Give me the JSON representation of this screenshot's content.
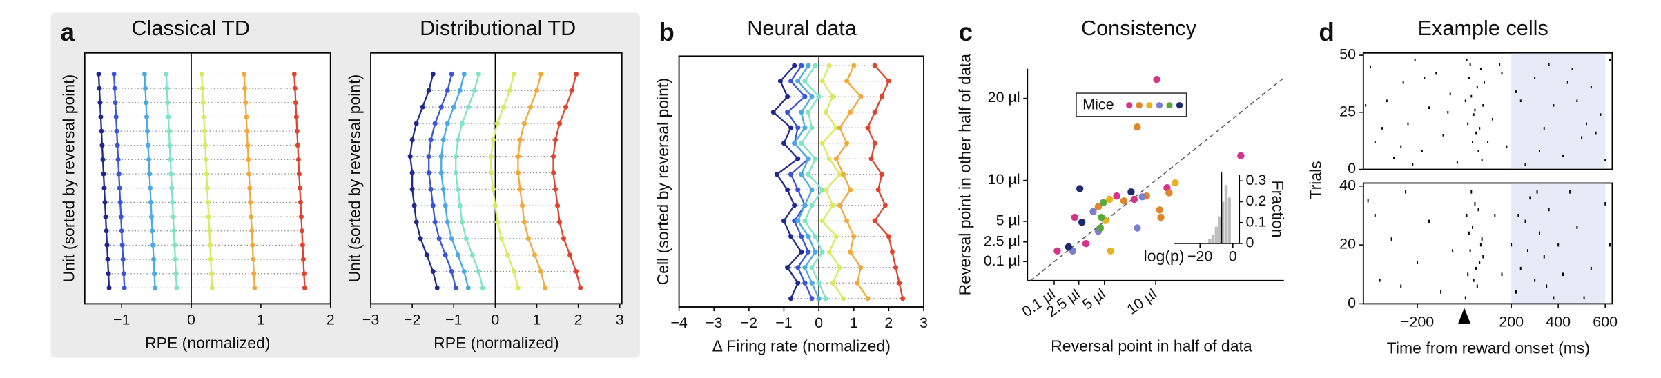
{
  "chart_data": [
    {
      "type": "dot_rows",
      "panel": "a",
      "title": "Classical TD",
      "x_label": "RPE (normalized)",
      "y_label": "Unit (sorted by reversal point)",
      "xlim": [
        -1.53,
        2
      ],
      "xticks": [
        {
          "value": -1,
          "label": "−1"
        },
        0,
        1,
        2
      ],
      "series": [
        {
          "color": "#1f2a8c",
          "values": [
            -1.33,
            -1.32,
            -1.31,
            -1.3,
            -1.29,
            -1.28,
            -1.27,
            -1.26,
            -1.25,
            -1.24,
            -1.23,
            -1.22,
            -1.21,
            -1.2,
            -1.19,
            -1.18
          ]
        },
        {
          "color": "#3a55d6",
          "values": [
            -1.11,
            -1.1,
            -1.09,
            -1.08,
            -1.07,
            -1.06,
            -1.05,
            -1.04,
            -1.03,
            -1.02,
            -1.01,
            -1.0,
            -0.99,
            -0.98,
            -0.97,
            -0.96
          ]
        },
        {
          "color": "#4aa9e6",
          "values": [
            -0.67,
            -0.66,
            -0.65,
            -0.64,
            -0.63,
            -0.62,
            -0.61,
            -0.6,
            -0.59,
            -0.58,
            -0.57,
            -0.56,
            -0.55,
            -0.54,
            -0.53,
            -0.52
          ]
        },
        {
          "color": "#7fe3c8",
          "values": [
            -0.36,
            -0.35,
            -0.34,
            -0.33,
            -0.32,
            -0.31,
            -0.3,
            -0.29,
            -0.28,
            -0.27,
            -0.26,
            -0.25,
            -0.24,
            -0.23,
            -0.22,
            -0.21
          ]
        },
        {
          "color": "#d9ea62",
          "values": [
            0.15,
            0.16,
            0.17,
            0.18,
            0.19,
            0.2,
            0.21,
            0.22,
            0.23,
            0.24,
            0.25,
            0.26,
            0.27,
            0.28,
            0.29,
            0.3
          ]
        },
        {
          "color": "#f2a93b",
          "values": [
            0.76,
            0.77,
            0.78,
            0.79,
            0.8,
            0.81,
            0.82,
            0.83,
            0.84,
            0.85,
            0.86,
            0.87,
            0.88,
            0.89,
            0.9,
            0.91
          ]
        },
        {
          "color": "#e0442c",
          "values": [
            1.48,
            1.49,
            1.5,
            1.51,
            1.52,
            1.53,
            1.54,
            1.55,
            1.56,
            1.57,
            1.58,
            1.59,
            1.6,
            1.61,
            1.62,
            1.63
          ]
        }
      ]
    },
    {
      "type": "dot_rows",
      "title": "Distributional TD",
      "x_label": "RPE (normalized)",
      "y_label": "Unit (sorted by reversal point)",
      "xlim": [
        -3,
        3.05
      ],
      "xticks": [
        {
          "value": -3,
          "label": "−3"
        },
        {
          "value": -2,
          "label": "−2"
        },
        {
          "value": -1,
          "label": "−1"
        },
        0,
        1,
        2,
        3
      ],
      "series": [
        {
          "color": "#1f2a8c",
          "values": [
            -1.5,
            -1.6,
            -1.75,
            -1.9,
            -2.0,
            -2.05,
            -2.0,
            -2.0,
            -1.95,
            -1.9,
            -1.8,
            -1.65,
            -1.5,
            -1.4
          ]
        },
        {
          "color": "#3a55d6",
          "values": [
            -1.05,
            -1.15,
            -1.3,
            -1.45,
            -1.55,
            -1.6,
            -1.6,
            -1.55,
            -1.5,
            -1.45,
            -1.35,
            -1.2,
            -1.05,
            -0.95
          ]
        },
        {
          "color": "#4aa9e6",
          "values": [
            -0.75,
            -0.85,
            -1.0,
            -1.15,
            -1.25,
            -1.3,
            -1.3,
            -1.25,
            -1.2,
            -1.15,
            -1.05,
            -0.9,
            -0.75,
            -0.65
          ]
        },
        {
          "color": "#7fe3c8",
          "values": [
            -0.4,
            -0.5,
            -0.65,
            -0.8,
            -0.9,
            -0.95,
            -0.95,
            -0.9,
            -0.85,
            -0.8,
            -0.7,
            -0.55,
            -0.4,
            -0.3
          ]
        },
        {
          "color": "#d9ea62",
          "values": [
            0.45,
            0.35,
            0.2,
            0.05,
            -0.05,
            -0.1,
            -0.1,
            -0.05,
            0,
            0.05,
            0.15,
            0.3,
            0.45,
            0.55
          ]
        },
        {
          "color": "#f2a93b",
          "values": [
            1.1,
            1.0,
            0.85,
            0.7,
            0.6,
            0.55,
            0.55,
            0.6,
            0.65,
            0.7,
            0.8,
            0.95,
            1.1,
            1.2
          ]
        },
        {
          "color": "#e0442c",
          "values": [
            1.95,
            1.85,
            1.7,
            1.55,
            1.45,
            1.4,
            1.4,
            1.45,
            1.5,
            1.55,
            1.65,
            1.8,
            1.95,
            2.05
          ]
        }
      ]
    },
    {
      "type": "dot_rows",
      "panel": "b",
      "title": "Neural data",
      "x_label": "Δ Firing rate (normalized)",
      "y_label": "Cell (sorted by reversal point)",
      "xlim": [
        -4,
        3
      ],
      "xticks": [
        {
          "value": -4,
          "label": "−4"
        },
        {
          "value": -3,
          "label": "−3"
        },
        {
          "value": -2,
          "label": "−2"
        },
        {
          "value": -1,
          "label": "−1"
        },
        0,
        1,
        2,
        3
      ],
      "series": [
        {
          "color": "#1f2a8c",
          "values": [
            -0.7,
            -1.1,
            -0.9,
            -1.3,
            -0.8,
            -1.0,
            -0.6,
            -1.2,
            -0.9,
            -0.7,
            -1.0,
            -0.8,
            -0.5,
            -0.9,
            -0.6,
            -0.8
          ]
        },
        {
          "color": "#3a55d6",
          "values": [
            -0.5,
            -0.8,
            -0.4,
            -0.9,
            -0.6,
            -0.7,
            -0.3,
            -0.8,
            -0.6,
            -0.4,
            -0.7,
            -0.5,
            -0.3,
            -0.6,
            -0.4,
            -0.2
          ]
        },
        {
          "color": "#4aa9e6",
          "values": [
            -0.3,
            -0.6,
            -0.2,
            -0.5,
            -0.4,
            -0.7,
            -0.3,
            -0.5,
            -0.2,
            -0.4,
            -0.6,
            -0.3,
            -0.1,
            -0.4,
            -0.2,
            0
          ]
        },
        {
          "color": "#7fe3c8",
          "values": [
            -0.1,
            -0.4,
            0,
            -0.3,
            -0.2,
            -0.5,
            -0.1,
            -0.3,
            0.1,
            -0.2,
            -0.4,
            -0.1,
            0.1,
            -0.2,
            0,
            0.2
          ]
        },
        {
          "color": "#d9ea62",
          "values": [
            0.3,
            0.1,
            0.4,
            0.2,
            0.5,
            0.1,
            0.3,
            0.6,
            0.2,
            0.4,
            0.1,
            0.5,
            0.3,
            0.6,
            0.4,
            0.7
          ]
        },
        {
          "color": "#f2a93b",
          "values": [
            1.0,
            0.8,
            1.2,
            0.9,
            0.6,
            0.8,
            0.5,
            0.7,
            0.9,
            0.6,
            0.8,
            1.0,
            0.9,
            1.2,
            1.1,
            1.4
          ]
        },
        {
          "color": "#e0442c",
          "values": [
            1.6,
            2.0,
            1.8,
            1.6,
            1.4,
            1.6,
            1.5,
            1.8,
            1.7,
            1.9,
            1.6,
            2.0,
            2.1,
            2.2,
            2.3,
            2.4
          ]
        }
      ]
    },
    {
      "type": "scatter",
      "panel": "c",
      "title": "Consistency",
      "x_label": "Reversal point in half of data",
      "y_label": "Reversal point in other half of data",
      "xlim": [
        -2.5,
        22.5
      ],
      "ylim": [
        -2.2,
        23.6
      ],
      "xticks": [
        {
          "value": 0.1,
          "label": "0.1 µl"
        },
        {
          "value": 2.5,
          "label": "2.5 µl"
        },
        {
          "value": 5,
          "label": "5 µl"
        },
        {
          "value": 10,
          "label": "10 µl"
        }
      ],
      "yticks": [
        {
          "value": 0.1,
          "label": "0.1 µl"
        },
        {
          "value": 2.5,
          "label": "2.5 µl"
        },
        {
          "value": 5,
          "label": "5 µl"
        },
        {
          "value": 10,
          "label": "10 µl"
        },
        {
          "value": 20,
          "label": "20 µl"
        }
      ],
      "identity_line": true,
      "legend_title": "Mice",
      "series": [
        {
          "color": "#d6338a",
          "x": [
            10.1,
            18.3,
            11.1,
            7.9,
            6.2,
            2.1,
            0.4,
            3.2
          ],
          "values": [
            22.3,
            13.0,
            9.1,
            7.7,
            8.1,
            5.5,
            1.4,
            2.3
          ]
        },
        {
          "color": "#e0852a",
          "x": [
            8.2,
            11.3,
            9.1,
            6.9,
            4.4,
            10.5,
            10.4
          ],
          "values": [
            16.5,
            8.5,
            8.1,
            7.5,
            6.8,
            5.5,
            6.4
          ]
        },
        {
          "color": "#e6b422",
          "x": [
            5.5,
            5.1,
            5.6,
            11.9
          ],
          "values": [
            7.7,
            5.1,
            1.4,
            9.7
          ]
        },
        {
          "color": "#7b7fd0",
          "x": [
            8.7,
            3.9,
            8.2,
            4.4,
            1.9
          ],
          "values": [
            8.0,
            6.2,
            4.2,
            3.8,
            1.4
          ]
        },
        {
          "color": "#5aa83c",
          "x": [
            4.9,
            4.7,
            4.6
          ],
          "values": [
            7.3,
            5.5,
            4.2
          ]
        },
        {
          "color": "#1f2a6b",
          "x": [
            2.6,
            7.6,
            2.8,
            1.5
          ],
          "values": [
            9.0,
            8.6,
            4.9,
            1.9
          ]
        }
      ]
    },
    {
      "type": "histogram",
      "x_label": "log(p)",
      "y_label": "Fraction",
      "color": "#bdbdbd",
      "bins": [
        -15,
        -13,
        -11,
        -9,
        -7,
        -5,
        -3,
        -1
      ],
      "values": [
        0.02,
        0.04,
        0.08,
        0.13,
        0.2,
        0.28,
        0.22
      ],
      "xlim": [
        -36,
        4
      ],
      "ylim": [
        0,
        0.33
      ],
      "xticks": [
        {
          "value": -20,
          "label": "−20"
        },
        0
      ],
      "yticks": [
        0,
        0.1,
        0.2,
        0.3
      ],
      "marker_line": -7
    },
    {
      "type": "raster",
      "panel": "d",
      "title": "Example cells",
      "xlim": [
        -430,
        630
      ],
      "ylim": [
        0,
        51
      ],
      "yticks": [
        0,
        25,
        50
      ],
      "shaded_range": [
        200,
        600
      ],
      "x": [
        -400,
        -380,
        -330,
        -300,
        -260,
        -240,
        -210,
        -180,
        -150,
        -120,
        -90,
        -60,
        -30,
        10,
        20,
        30,
        40,
        50,
        60,
        70,
        80,
        15,
        35,
        55,
        75,
        25,
        45,
        65,
        85,
        5,
        120,
        150,
        180,
        220,
        260,
        300,
        340,
        380,
        420,
        460,
        500,
        540,
        580,
        620,
        -350,
        -270,
        -170,
        -70,
        100,
        240,
        320,
        440,
        520,
        600,
        -420,
        -220,
        160,
        360,
        480,
        560
      ],
      "values": [
        45,
        12,
        30,
        5,
        38,
        20,
        48,
        8,
        27,
        42,
        15,
        33,
        3,
        48,
        40,
        32,
        24,
        16,
        8,
        44,
        28,
        20,
        12,
        36,
        4,
        46,
        26,
        18,
        38,
        30,
        22,
        46,
        10,
        34,
        2,
        40,
        18,
        28,
        6,
        44,
        14,
        36,
        24,
        48,
        18,
        10,
        40,
        25,
        12,
        30,
        8,
        38,
        20,
        4,
        28,
        2,
        42,
        46,
        30,
        16
      ]
    },
    {
      "type": "raster",
      "x_label": "Time from reward onset (ms)",
      "y_label": "Trials",
      "xlim": [
        -430,
        630
      ],
      "ylim": [
        0,
        41
      ],
      "yticks": [
        0,
        20,
        40
      ],
      "xticks": [
        {
          "value": -200,
          "label": "−200"
        },
        200,
        400,
        600
      ],
      "shaded_range": [
        200,
        600
      ],
      "event_marker": 0,
      "x": [
        -410,
        -360,
        -310,
        -250,
        -200,
        -150,
        -100,
        -50,
        5,
        15,
        25,
        35,
        45,
        55,
        65,
        75,
        10,
        30,
        50,
        70,
        20,
        40,
        60,
        80,
        200,
        220,
        240,
        260,
        280,
        300,
        320,
        340,
        360,
        380,
        400,
        420,
        230,
        270,
        310,
        350,
        480,
        540,
        600,
        620,
        -380,
        -270,
        130,
        160,
        450,
        510
      ],
      "values": [
        35,
        8,
        22,
        38,
        14,
        28,
        4,
        18,
        2,
        10,
        18,
        26,
        34,
        6,
        14,
        22,
        30,
        38,
        12,
        20,
        24,
        8,
        32,
        16,
        20,
        4,
        12,
        28,
        36,
        8,
        24,
        16,
        32,
        2,
        20,
        10,
        30,
        18,
        38,
        6,
        26,
        12,
        34,
        20,
        30,
        6,
        30,
        10,
        38,
        2
      ]
    }
  ]
}
